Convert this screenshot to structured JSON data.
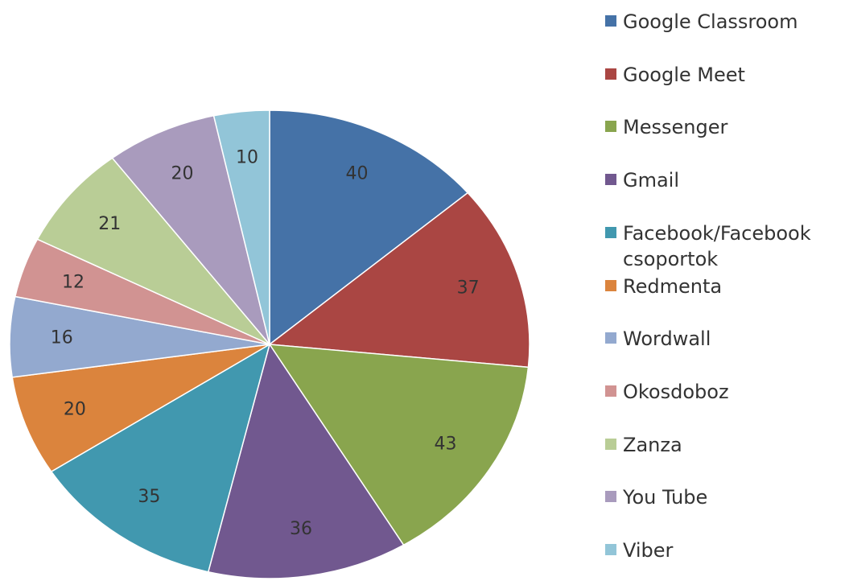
{
  "chart_data": {
    "type": "pie",
    "categories": [
      "Google Classroom",
      "Google Meet",
      "Messenger",
      "Gmail",
      "Facebook/Facebook csoportok",
      "Redmenta",
      "Wordwall",
      "Okosdoboz",
      "Zanza",
      "You Tube",
      "Viber"
    ],
    "values": [
      40,
      37,
      43,
      36,
      35,
      20,
      16,
      12,
      21,
      20,
      10
    ],
    "colors": [
      "#4572a7",
      "#aa4643",
      "#89a54e",
      "#71588f",
      "#4198af",
      "#db843d",
      "#93a9cf",
      "#d19392",
      "#b9cd96",
      "#a99bbd",
      "#92c5d8"
    ],
    "legend": "right"
  }
}
